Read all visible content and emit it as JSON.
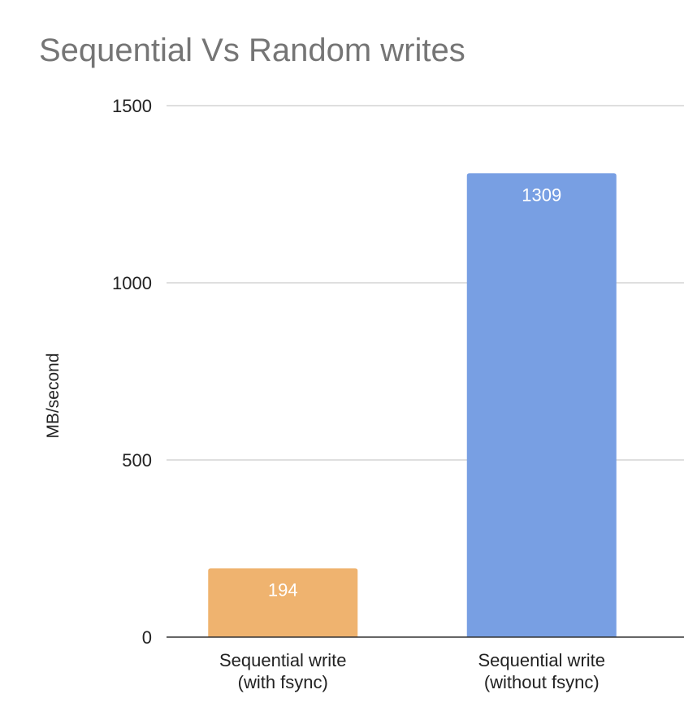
{
  "chart_data": {
    "type": "bar",
    "title": "Sequential Vs Random writes",
    "xlabel": "",
    "ylabel": "MB/second",
    "ylim": [
      0,
      1500
    ],
    "yticks": [
      "0",
      "500",
      "1000",
      "1500"
    ],
    "grid": true,
    "legend": "none",
    "categories": [
      [
        "Sequential write",
        "(with fsync)"
      ],
      [
        "Sequential write",
        "(without fsync)"
      ]
    ],
    "values": [
      194,
      1309
    ],
    "colors": [
      "#efb36f",
      "#789fe3"
    ]
  }
}
